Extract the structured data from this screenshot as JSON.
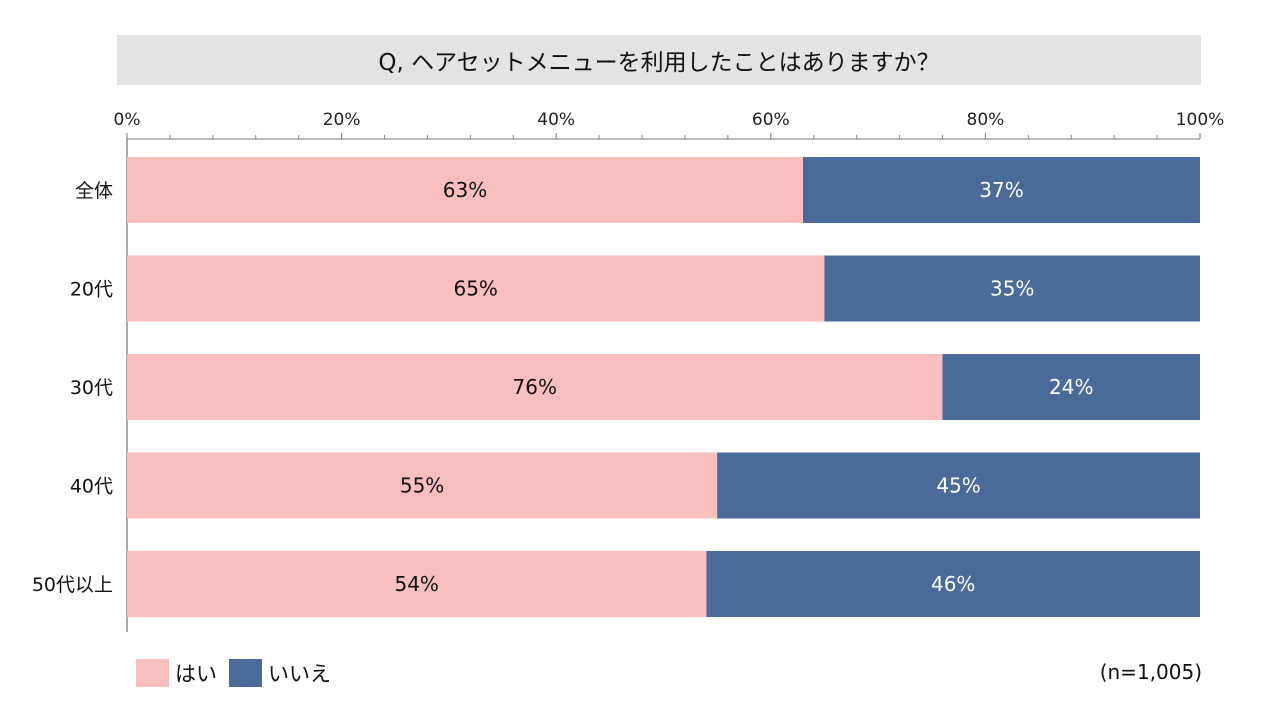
{
  "chart_data": {
    "type": "bar",
    "orientation": "horizontal",
    "stacked": true,
    "title": "Q, ヘアセットメニューを利用したことはありますか？",
    "categories": [
      "全体",
      "20代",
      "30代",
      "40代",
      "50代以上"
    ],
    "series": [
      {
        "name": "はい",
        "color": "#f9bebe",
        "label_color": "#111111",
        "values": [
          63,
          65,
          76,
          55,
          54
        ]
      },
      {
        "name": "いいえ",
        "color": "#4a6a9a",
        "label_color": "#ffffff",
        "values": [
          37,
          35,
          24,
          45,
          46
        ]
      }
    ],
    "value_suffix": "%",
    "xlim": [
      0,
      100
    ],
    "x_ticks": [
      0,
      20,
      40,
      60,
      80,
      100
    ],
    "x_tick_labels": [
      "0%",
      "20%",
      "40%",
      "60%",
      "80%",
      "100%"
    ],
    "legend_position": "bottom-left",
    "note": "(n=1,005)"
  }
}
